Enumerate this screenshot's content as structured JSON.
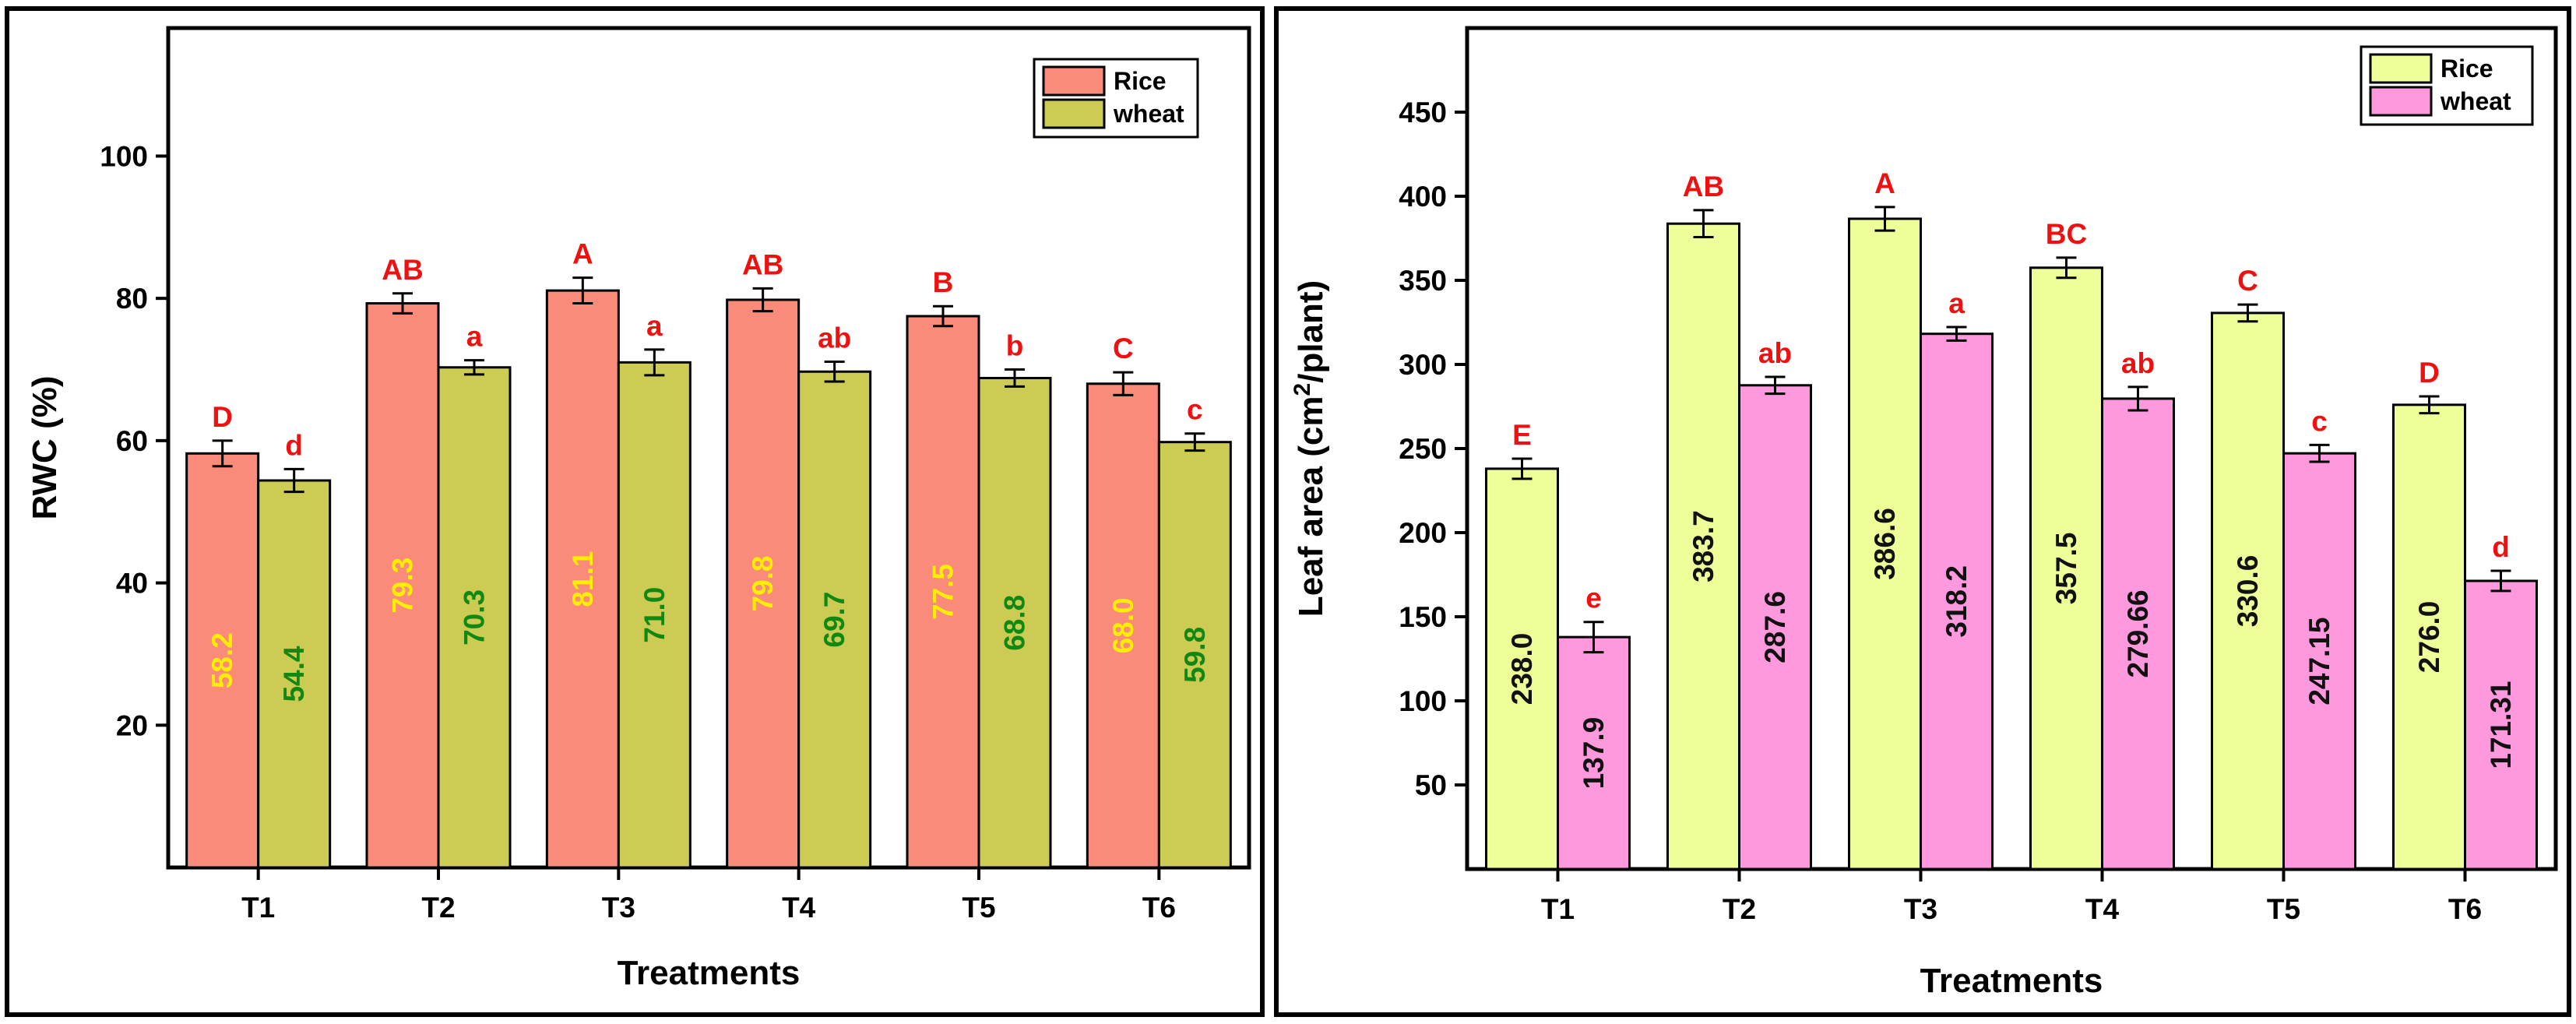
{
  "chart_data": [
    {
      "type": "bar",
      "categories": [
        "T1",
        "T2",
        "T3",
        "T4",
        "T5",
        "T6"
      ],
      "xlabel": "Treatments",
      "ylabel": "RWC (%)",
      "ylim": [
        0,
        118
      ],
      "yticks": [
        20,
        40,
        60,
        80,
        100
      ],
      "legend_position": "top-right",
      "series": [
        {
          "name": "Rice",
          "color": "#fa8a7a",
          "value_label_color": "#ffee00",
          "letter_color": "#ee1111",
          "values": [
            58.2,
            79.3,
            81.1,
            79.8,
            77.5,
            68.0
          ],
          "errors": [
            1.8,
            1.4,
            1.8,
            1.6,
            1.4,
            1.6
          ],
          "value_labels": [
            "58.2",
            "79.3",
            "81.1",
            "79.8",
            "77.5",
            "68.0"
          ],
          "letters": [
            "D",
            "AB",
            "A",
            "AB",
            "B",
            "C"
          ]
        },
        {
          "name": "wheat",
          "color": "#cccc55",
          "value_label_color": "#118811",
          "letter_color": "#ee1111",
          "values": [
            54.4,
            70.3,
            71.0,
            69.7,
            68.8,
            59.8
          ],
          "errors": [
            1.6,
            1.0,
            1.8,
            1.4,
            1.2,
            1.2
          ],
          "value_labels": [
            "54.4",
            "70.3",
            "71.0",
            "69.7",
            "68.8",
            "59.8"
          ],
          "letters": [
            "d",
            "a",
            "a",
            "ab",
            "b",
            "c"
          ]
        }
      ]
    },
    {
      "type": "bar",
      "categories": [
        "T1",
        "T2",
        "T3",
        "T4",
        "T5",
        "T6"
      ],
      "xlabel": "Treatments",
      "ylabel_main": "Leaf area (cm",
      "ylabel_sup": "2",
      "ylabel_end": "/plant)",
      "ylim": [
        0,
        500
      ],
      "yticks": [
        50,
        100,
        150,
        200,
        250,
        300,
        350,
        400,
        450
      ],
      "legend_position": "top-right",
      "series": [
        {
          "name": "Rice",
          "color": "#eeff99",
          "value_label_color": "#111111",
          "letter_color": "#ee1111",
          "values": [
            238.0,
            383.7,
            386.6,
            357.5,
            330.6,
            276.0
          ],
          "errors": [
            6,
            8,
            7,
            6,
            5,
            5
          ],
          "value_labels": [
            "238.0",
            "383.7",
            "386.6",
            "357.5",
            "330.6",
            "276.0"
          ],
          "letters": [
            "E",
            "AB",
            "A",
            "BC",
            "C",
            "D"
          ]
        },
        {
          "name": "wheat",
          "color": "#ff99dd",
          "value_label_color": "#111111",
          "letter_color": "#ee1111",
          "values": [
            137.9,
            287.6,
            318.2,
            279.66,
            247.15,
            171.31
          ],
          "errors": [
            9,
            5,
            4,
            7,
            5,
            6
          ],
          "value_labels": [
            "137.9",
            "287.6",
            "318.2",
            "279.66",
            "247.15",
            "171.31"
          ],
          "letters": [
            "e",
            "ab",
            "a",
            "ab",
            "c",
            "d"
          ]
        }
      ]
    }
  ]
}
